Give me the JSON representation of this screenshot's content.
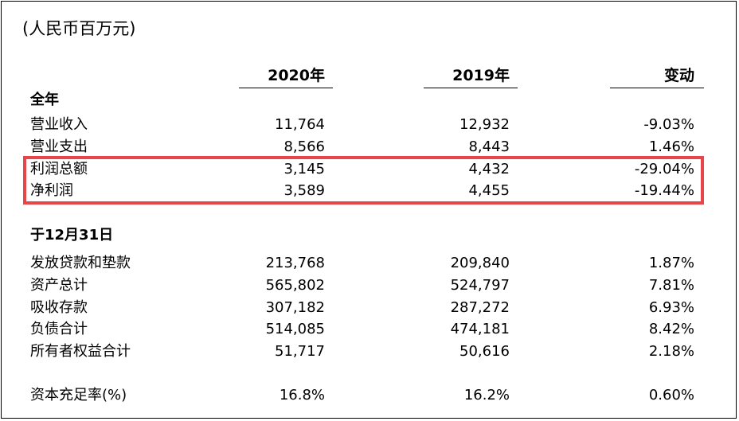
{
  "unit_label": "(人民币百万元)",
  "columns": [
    "2020年",
    "2019年",
    "变动"
  ],
  "sections": [
    {
      "title": "全年",
      "rows": [
        {
          "label": "营业收入",
          "v2020": "11,764",
          "v2019": "12,932",
          "change": "-9.03%"
        },
        {
          "label": "营业支出",
          "v2020": "8,566",
          "v2019": "8,443",
          "change": "1.46%"
        },
        {
          "label": "利润总额",
          "v2020": "3,145",
          "v2019": "4,432",
          "change": "-29.04%"
        },
        {
          "label": "净利润",
          "v2020": "3,589",
          "v2019": "4,455",
          "change": "-19.44%"
        }
      ]
    },
    {
      "title": "于12月31日",
      "rows": [
        {
          "label": "发放贷款和垫款",
          "v2020": "213,768",
          "v2019": "209,840",
          "change": "1.87%"
        },
        {
          "label": "资产总计",
          "v2020": "565,802",
          "v2019": "524,797",
          "change": "7.81%"
        },
        {
          "label": "吸收存款",
          "v2020": "307,182",
          "v2019": "287,272",
          "change": "6.93%"
        },
        {
          "label": "负债合计",
          "v2020": "514,085",
          "v2019": "474,181",
          "change": "8.42%"
        },
        {
          "label": "所有者权益合计",
          "v2020": "51,717",
          "v2019": "50,616",
          "change": "2.18%"
        }
      ]
    },
    {
      "title": "",
      "rows": [
        {
          "label": "资本充足率(%)",
          "v2020": "16.8%",
          "v2019": "16.2%",
          "change": "0.60%"
        }
      ]
    }
  ],
  "highlight_color": "#e8454a"
}
